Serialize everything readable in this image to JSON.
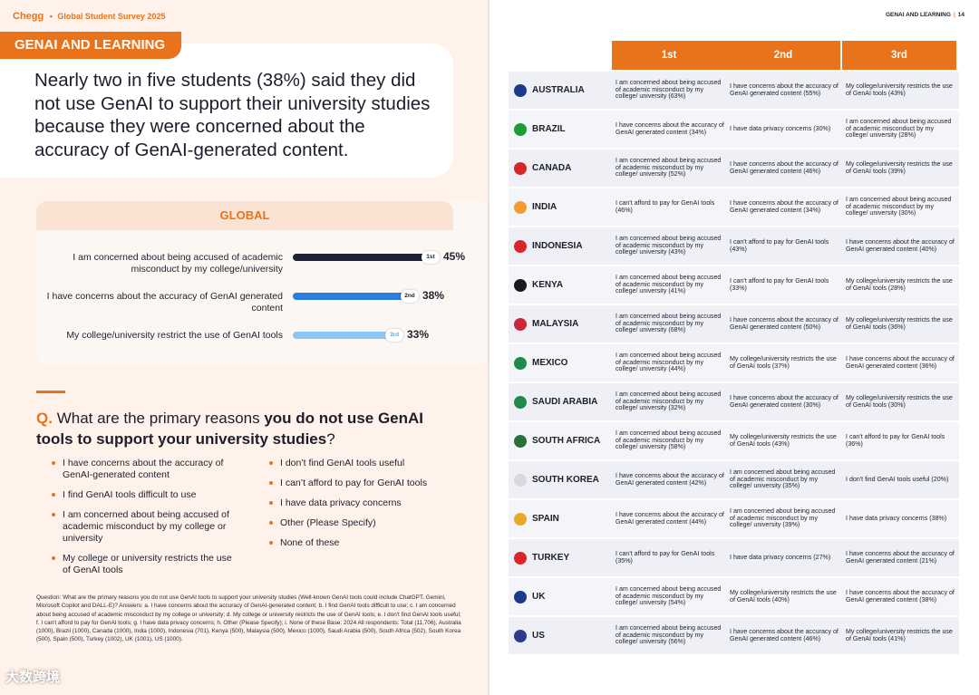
{
  "left": {
    "brand": {
      "name": "Chegg",
      "sep": "•",
      "survey": "Global Student Survey 2025"
    },
    "section": "GENAI AND LEARNING",
    "headline": "Nearly two in five students (38%) said they did not use GenAI to support their university studies because they were concerned about the accuracy of GenAI-generated content.",
    "global": {
      "title": "GLOBAL",
      "rows": [
        {
          "label": "I am concerned about being accused of academic misconduct by my college/university",
          "rank": "1st",
          "pct": "45%",
          "value": 45,
          "color": "#1e2033"
        },
        {
          "label": "I have concerns about the accuracy of GenAI generated content",
          "rank": "2nd",
          "pct": "38%",
          "value": 38,
          "color": "#2a7de1"
        },
        {
          "label": "My college/university restrict the use of GenAI tools",
          "rank": "3rd",
          "pct": "33%",
          "value": 33,
          "color": "#8cc6f2"
        }
      ]
    },
    "question": {
      "letter": "Q.",
      "pre": "What are the primary reasons ",
      "bold": "you do not use GenAI tools to support your university studies",
      "post": "?"
    },
    "options_left": [
      "I have concerns about the accuracy of GenAI-generated content",
      "I find GenAI tools difficult to use",
      "I am concerned about being accused of academic misconduct by my college or university",
      "My college or university restricts the use of GenAI tools"
    ],
    "options_right": [
      "I don’t find GenAI tools useful",
      "I can’t afford to pay for GenAI tools",
      "I have data privacy concerns",
      "Other (Please Specify)",
      "None of these"
    ],
    "footnote": "Question: What are the primary reasons you do not use GenAI tools to support your university studies (Well-known GenAI tools could include ChatGPT, Gemini, Microsoft Copilot and DALL-E)? Answers: a. I have concerns about the accuracy of GenAI-generated content; b. I find GenAI tools difficult to use; c. I am concerned about being accused of academic misconduct by my college or university; d. My college or university restricts the use of GenAI tools; e. I don't find GenAI tools useful; f. I can't afford to pay for GenAI tools; g. I have data privacy concerns; h. Other (Please Specify); i. None of these Base: 2024 All respondents: Total (11,706), Australia (1000), Brazil (1000), Canada (1000), India (1000), Indonesia (701), Kenya (500), Malaysia (500), Mexico (1000), Saudi Arabia (500), South Africa (502), South Korea (500), Spain (500), Turkey (1002), UK (1001), US (1000).",
    "watermark": "大数跨境"
  },
  "right": {
    "header": {
      "section": "GENAI AND LEARNING",
      "sep": "|",
      "page": "14"
    },
    "columns": [
      "1st",
      "2nd",
      "3rd"
    ],
    "rows": [
      {
        "country": "AUSTRALIA",
        "flag": "#1a3a8c",
        "c": [
          "I am concerned about being accused of academic misconduct by my college/ university (63%)",
          "I have concerns about the accuracy of GenAI generated content (55%)",
          "My college/university restricts the use of GenAI tools (43%)"
        ]
      },
      {
        "country": "BRAZIL",
        "flag": "#1f9b3a",
        "c": [
          "I have concerns about the accuracy of GenAI generated content (34%)",
          "I have data privacy concerns (30%)",
          "I am concerned about being accused of academic misconduct by my college/ university (28%)"
        ]
      },
      {
        "country": "CANADA",
        "flag": "#d8252b",
        "c": [
          "I am concerned about being accused of academic misconduct by my college/ university (52%)",
          "I have concerns about the accuracy of GenAI generated content (46%)",
          "My college/university restricts the use of GenAI tools (39%)"
        ]
      },
      {
        "country": "INDIA",
        "flag": "#f39b2f",
        "c": [
          "I can't afford to pay for GenAI tools (46%)",
          "I have concerns about the accuracy of GenAI generated content (34%)",
          "I am concerned about being accused of academic misconduct by my college/ university (30%)"
        ]
      },
      {
        "country": "INDONESIA",
        "flag": "#d8252b",
        "c": [
          "I am concerned about being accused of academic misconduct by my college/ university (43%)",
          "I can't afford to pay for GenAI tools (43%)",
          "I have concerns about the accuracy of GenAI generated content (40%)"
        ]
      },
      {
        "country": "KENYA",
        "flag": "#1a1a1a",
        "c": [
          "I am concerned about being accused of academic misconduct by my college/ university (41%)",
          "I can't afford to pay for GenAI tools (33%)",
          "My college/university restricts the use of GenAI tools (28%)"
        ]
      },
      {
        "country": "MALAYSIA",
        "flag": "#c8283c",
        "c": [
          "I am concerned about being accused of academic misconduct by my college/ university (68%)",
          "I have concerns about the accuracy of GenAI generated content (50%)",
          "My college/university restricts the use of GenAI tools (36%)"
        ]
      },
      {
        "country": "MEXICO",
        "flag": "#1f8a4a",
        "c": [
          "I am concerned about being accused of academic misconduct by my college/ university (44%)",
          "My college/university restricts the use of GenAI tools (37%)",
          "I have concerns about the accuracy of GenAI generated content (36%)"
        ]
      },
      {
        "country": "SAUDI ARABIA",
        "flag": "#1f8a4a",
        "c": [
          "I am concerned about being accused of academic misconduct by my college/ university (32%)",
          "I have concerns about the accuracy of GenAI generated content (30%)",
          "My college/university restricts the use of GenAI tools (30%)"
        ]
      },
      {
        "country": "SOUTH AFRICA",
        "flag": "#2a6e3a",
        "c": [
          "I am concerned about being accused of academic misconduct by my college/ university (58%)",
          "My college/university restricts the use of GenAI tools (43%)",
          "I can't afford to pay for GenAI tools (36%)"
        ]
      },
      {
        "country": "SOUTH KOREA",
        "flag": "#d8d8e0",
        "c": [
          "I have concerns about the accuracy of GenAI generated content (42%)",
          "I am concerned about being accused of academic misconduct by my college/ university (35%)",
          "I don't find GenAI tools useful (20%)"
        ]
      },
      {
        "country": "SPAIN",
        "flag": "#e8a92a",
        "c": [
          "I have concerns about the accuracy of GenAI generated content (44%)",
          "I am concerned about being accused of academic misconduct by my college/ university (39%)",
          "I have data privacy concerns (38%)"
        ]
      },
      {
        "country": "TURKEY",
        "flag": "#d8252b",
        "c": [
          "I can't afford to pay for GenAI tools (35%)",
          "I have data privacy concerns (27%)",
          "I have concerns about the accuracy of GenAI generated content (21%)"
        ]
      },
      {
        "country": "UK",
        "flag": "#1a3a8c",
        "c": [
          "I am concerned about being accused of academic misconduct by my college/ university (54%)",
          "My college/university restricts the use of GenAI tools (40%)",
          "I have concerns about the accuracy of GenAI generated content (38%)"
        ]
      },
      {
        "country": "US",
        "flag": "#2a3a8c",
        "c": [
          "I am concerned about being accused of academic misconduct by my college/ university (56%)",
          "I have concerns about the accuracy of GenAI generated content (46%)",
          "My college/university restricts the use of GenAI tools (41%)"
        ]
      }
    ]
  }
}
